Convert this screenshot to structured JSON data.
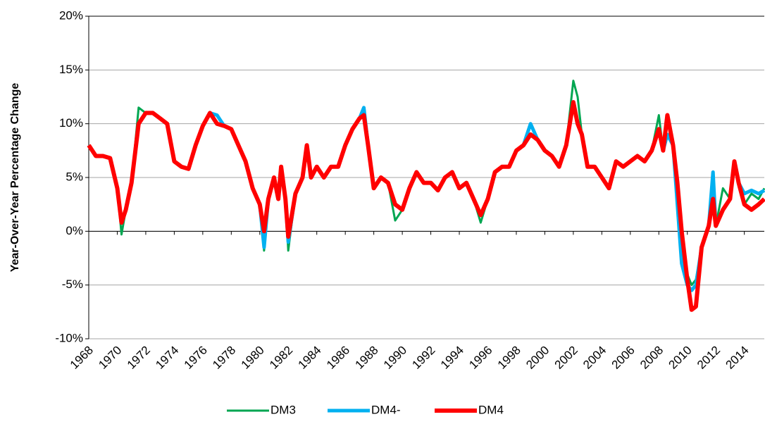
{
  "chart_data": {
    "type": "line",
    "y_label": "Year-Over-Year Percentage Change",
    "x": [
      1968,
      1968.5,
      1969,
      1969.5,
      1970,
      1970.3,
      1970.6,
      1971,
      1971.5,
      1972,
      1972.5,
      1973,
      1973.5,
      1974,
      1974.5,
      1975,
      1975.5,
      1976,
      1976.5,
      1977,
      1977.5,
      1978,
      1978.5,
      1979,
      1979.5,
      1980,
      1980.3,
      1980.6,
      1981,
      1981.3,
      1981.5,
      1981.8,
      1982,
      1982.5,
      1983,
      1983.3,
      1983.6,
      1984,
      1984.5,
      1985,
      1985.5,
      1986,
      1986.5,
      1987,
      1987.3,
      1987.6,
      1988,
      1988.5,
      1989,
      1989.5,
      1990,
      1990.5,
      1991,
      1991.5,
      1992,
      1992.5,
      1993,
      1993.5,
      1994,
      1994.5,
      1995,
      1995.5,
      1996,
      1996.5,
      1997,
      1997.5,
      1998,
      1998.5,
      1999,
      1999.5,
      2000,
      2000.5,
      2001,
      2001.5,
      2002,
      2002.3,
      2002.6,
      2003,
      2003.5,
      2004,
      2004.5,
      2005,
      2005.5,
      2006,
      2006.5,
      2007,
      2007.5,
      2008,
      2008.3,
      2008.6,
      2009,
      2009.3,
      2009.6,
      2010,
      2010.3,
      2010.6,
      2011,
      2011.5,
      2011.8,
      2012,
      2012.5,
      2013,
      2013.3,
      2013.6,
      2014,
      2014.5,
      2015,
      2015.4
    ],
    "series": [
      {
        "name": "DM3",
        "color": "#00a651",
        "values": [
          8,
          7,
          7,
          6.8,
          4,
          -0.3,
          2,
          4.5,
          11.5,
          11,
          11,
          10.5,
          10,
          6.5,
          6,
          5.8,
          8,
          9.8,
          11,
          10,
          9.8,
          9.5,
          8,
          6.5,
          4,
          2.5,
          -1.8,
          3,
          5,
          3,
          6,
          3,
          -1.8,
          3.5,
          5,
          8,
          5,
          6,
          5,
          6,
          6,
          8,
          9.5,
          10.5,
          10.8,
          8,
          4,
          5,
          4.5,
          1,
          2,
          4,
          5.5,
          4.5,
          4.5,
          3.8,
          5,
          5.5,
          4,
          4.5,
          3,
          0.8,
          3,
          5.5,
          6,
          6,
          7.5,
          8,
          9,
          8.5,
          7.5,
          7,
          6,
          8,
          14,
          12.5,
          9,
          6,
          6,
          5,
          4,
          6.5,
          6,
          6.5,
          7,
          6.5,
          7.5,
          10.8,
          7.5,
          10.8,
          8,
          4.5,
          -2,
          -4,
          -5,
          -4.5,
          -1.5,
          0.5,
          3,
          0.5,
          4,
          3,
          6.5,
          4.5,
          2.5,
          3.5,
          3,
          4
        ]
      },
      {
        "name": "DM4-",
        "color": "#00b0f0",
        "values": [
          8,
          7,
          7,
          6.8,
          4,
          0.8,
          2,
          4.5,
          10,
          11,
          11,
          10.5,
          10,
          6.5,
          6,
          5.8,
          8,
          9.8,
          11,
          10.8,
          9.8,
          9.5,
          8,
          6.5,
          4,
          2.5,
          -1.5,
          3,
          5,
          3,
          6,
          3,
          -1,
          3.5,
          5,
          8,
          5,
          6,
          5,
          6,
          6,
          8,
          9.5,
          10.5,
          11.5,
          8,
          4,
          5,
          4.5,
          2.5,
          2,
          4,
          5.5,
          4.5,
          4.5,
          3.8,
          5,
          5.5,
          4,
          4.5,
          3,
          1.5,
          3,
          5.5,
          6,
          6,
          7.5,
          8,
          10,
          8.5,
          7.5,
          7,
          6,
          8,
          12,
          10,
          9,
          6,
          6,
          5,
          4,
          6.5,
          6,
          6.5,
          7,
          6.5,
          7.5,
          9.5,
          7.5,
          9,
          8,
          2.5,
          -3,
          -5,
          -5.5,
          -5,
          -1.5,
          0.5,
          5.5,
          0.5,
          2,
          3,
          6.5,
          4.5,
          3.5,
          3.8,
          3.5,
          3.8
        ]
      },
      {
        "name": "DM4",
        "color": "#ff0000",
        "values": [
          8,
          7,
          7,
          6.8,
          4,
          0.8,
          2,
          4.5,
          10,
          11,
          11,
          10.5,
          10,
          6.5,
          6,
          5.8,
          8,
          9.8,
          11,
          10,
          9.8,
          9.5,
          8,
          6.5,
          4,
          2.5,
          0,
          3,
          5,
          3,
          6,
          3,
          -0.5,
          3.5,
          5,
          8,
          5,
          6,
          5,
          6,
          6,
          8,
          9.5,
          10.5,
          10.8,
          8,
          4,
          5,
          4.5,
          2.5,
          2,
          4,
          5.5,
          4.5,
          4.5,
          3.8,
          5,
          5.5,
          4,
          4.5,
          3,
          1.5,
          3,
          5.5,
          6,
          6,
          7.5,
          8,
          9,
          8.5,
          7.5,
          7,
          6,
          8,
          12,
          10,
          9,
          6,
          6,
          5,
          4,
          6.5,
          6,
          6.5,
          7,
          6.5,
          7.5,
          9.5,
          7.5,
          10.8,
          8,
          4.5,
          0,
          -4.5,
          -7.3,
          -7,
          -1.5,
          0.5,
          3,
          0.5,
          2,
          3,
          6.5,
          4.5,
          2.5,
          2,
          2.5,
          3
        ]
      }
    ],
    "xlim": [
      1968,
      2015.4
    ],
    "xticks": [
      1968,
      1970,
      1972,
      1974,
      1976,
      1978,
      1980,
      1982,
      1984,
      1986,
      1988,
      1990,
      1992,
      1994,
      1996,
      1998,
      2000,
      2002,
      2004,
      2006,
      2008,
      2010,
      2012,
      2014
    ],
    "ylim": [
      -10,
      20
    ],
    "yticks": [
      {
        "value": -10,
        "label": "-10%"
      },
      {
        "value": -5,
        "label": "-5%"
      },
      {
        "value": 0,
        "label": "0%"
      },
      {
        "value": 5,
        "label": "5%"
      },
      {
        "value": 10,
        "label": "10%"
      },
      {
        "value": 15,
        "label": "15%"
      },
      {
        "value": 20,
        "label": "20%"
      }
    ],
    "grid": true,
    "legend": "bottom"
  }
}
